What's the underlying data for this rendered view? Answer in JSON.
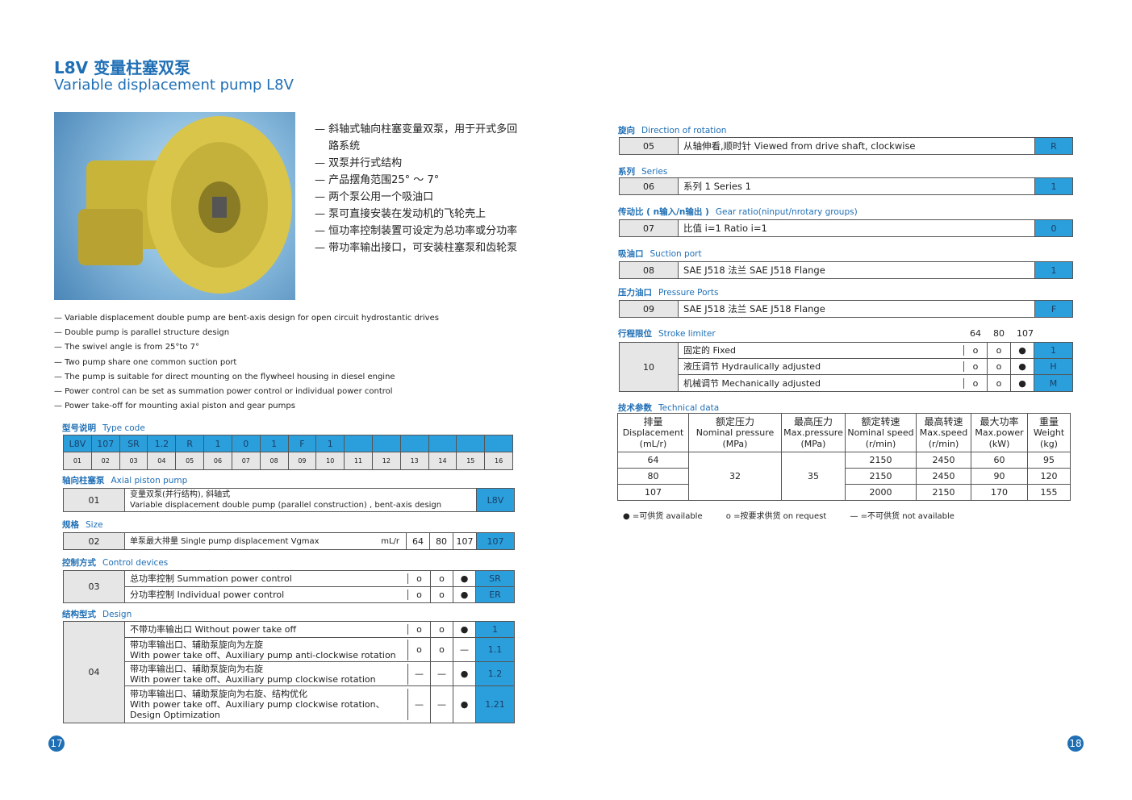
{
  "title_cn": "L8V 变量柱塞双泵",
  "title_en": "Variable displacement pump L8V",
  "bullets_cn": [
    "— 斜轴式轴向柱塞变量双泵，用于开式多回",
    "　 路系统",
    "— 双泵并行式结构",
    "— 产品摆角范围25° ～ 7°",
    "— 两个泵公用一个吸油口",
    "— 泵可直接安装在发动机的飞轮壳上",
    "— 恒功率控制装置可设定为总功率或分功率",
    "— 带功率输出接口，可安装柱塞泵和齿轮泵"
  ],
  "bullets_en": [
    "— Variable displacement double pump are bent-axis design for open circuit hydrostantic drives",
    "— Double pump is parallel structure design",
    "— The swivel angle is from 25°to 7°",
    "— Two pump share one common suction port",
    "— The pump is suitable for direct mounting on the flywheel housing in diesel engine",
    "— Power control can be set as summation power control or individual power control",
    "— Power take-off for mounting axial piston and gear pumps"
  ],
  "type_code": {
    "cn": "型号说明",
    "en": "Type code",
    "codes": [
      "L8V",
      "107",
      "SR",
      "1.2",
      "R",
      "1",
      "0",
      "1",
      "F",
      "1",
      "",
      "",
      "",
      "",
      "",
      ""
    ],
    "positions": [
      "01",
      "02",
      "03",
      "04",
      "05",
      "06",
      "07",
      "08",
      "09",
      "10",
      "11",
      "12",
      "13",
      "14",
      "15",
      "16"
    ]
  },
  "axial": {
    "cn": "轴向柱塞泵",
    "en": "Axial piston pump",
    "code": "01",
    "lines": [
      "变量双泵(并行结构), 斜轴式",
      "Variable displacement double pump (parallel construction) , bent-axis design"
    ],
    "value": "L8V"
  },
  "size": {
    "cn": "规格",
    "en": "Size",
    "code": "02",
    "text": "单泵最大排量 Single pump displacement Vgmax",
    "unit": "mL/r",
    "sizes": [
      "64",
      "80",
      "107"
    ],
    "value": "107"
  },
  "control": {
    "cn": "控制方式",
    "en": "Control devices",
    "code": "03",
    "rows": [
      {
        "lines": [
          "总功率控制 Summation power control"
        ],
        "marks": [
          "o",
          "o",
          "●"
        ],
        "value": "SR"
      },
      {
        "lines": [
          "分功率控制 Individual power control"
        ],
        "marks": [
          "o",
          "o",
          "●"
        ],
        "value": "ER"
      }
    ]
  },
  "design": {
    "cn": "结构型式",
    "en": "Design",
    "code": "04",
    "rows": [
      {
        "lines": [
          "不带功率输出口  Without power take off"
        ],
        "marks": [
          "o",
          "o",
          "●"
        ],
        "value": "1"
      },
      {
        "lines": [
          "带功率输出口、辅助泵旋向为左旋",
          "With power take off、Auxiliary pump anti-clockwise rotation"
        ],
        "marks": [
          "o",
          "o",
          "—"
        ],
        "value": "1.1"
      },
      {
        "lines": [
          "带功率输出口、辅助泵旋向为右旋",
          "With power take off、Auxiliary pump clockwise rotation"
        ],
        "marks": [
          "—",
          "—",
          "●"
        ],
        "value": "1.2"
      },
      {
        "lines": [
          "带功率输出口、辅助泵旋向为右旋、结构优化",
          "With power take off、Auxiliary pump clockwise rotation、Design Optimization"
        ],
        "marks": [
          "—",
          "—",
          "●"
        ],
        "value": "1.21"
      }
    ]
  },
  "rotation": {
    "cn": "旋向",
    "en": "Direction of rotation",
    "code": "05",
    "text": "从轴伸看,顺时针 Viewed from drive shaft, clockwise",
    "value": "R"
  },
  "series": {
    "cn": "系列",
    "en": "Series",
    "code": "06",
    "text": "系列 1   Series 1",
    "value": "1"
  },
  "gear": {
    "cn": "传动比 ( n输入/n输出 )",
    "en": "Gear ratio(ninput/nrotary groups)",
    "code": "07",
    "text": "比值 i=1   Ratio i=1",
    "value": "0"
  },
  "suction": {
    "cn": "吸油口",
    "en": "Suction port",
    "code": "08",
    "text": "SAE  J518 法兰   SAE  J518 Flange",
    "value": "1"
  },
  "pressure": {
    "cn": "压力油口",
    "en": "Pressure Ports",
    "code": "09",
    "text": "SAE  J518 法兰   SAE  J518 Flange",
    "value": "F"
  },
  "stroke": {
    "cn": "行程限位",
    "en": "Stroke limiter",
    "sizes": [
      "64",
      "80",
      "107"
    ],
    "code": "10",
    "rows": [
      {
        "lines": [
          "固定的  Fixed"
        ],
        "marks": [
          "o",
          "o",
          "●"
        ],
        "value": "1"
      },
      {
        "lines": [
          "液压调节  Hydraulically adjusted"
        ],
        "marks": [
          "o",
          "o",
          "●"
        ],
        "value": "H"
      },
      {
        "lines": [
          "机械调节  Mechanically adjusted"
        ],
        "marks": [
          "o",
          "o",
          "●"
        ],
        "value": "M"
      }
    ]
  },
  "tech": {
    "cn": "技术参数",
    "en": "Technical data",
    "headers": [
      [
        "排量",
        "Displacement",
        "(mL/r)"
      ],
      [
        "额定压力",
        "Nominal pressure",
        "(MPa)"
      ],
      [
        "最高压力",
        "Max.pressure",
        "(MPa)"
      ],
      [
        "额定转速",
        "Nominal speed",
        "(r/min)"
      ],
      [
        "最高转速",
        "Max.speed",
        "(r/min)"
      ],
      [
        "最大功率",
        "Max.power",
        "(kW)"
      ],
      [
        "重量",
        "Weight",
        "(kg)"
      ]
    ],
    "rows": [
      [
        "64",
        "32",
        "35",
        "2150",
        "2450",
        "60",
        "95"
      ],
      [
        "80",
        "",
        "",
        "2150",
        "2450",
        "90",
        "120"
      ],
      [
        "107",
        "",
        "",
        "2000",
        "2150",
        "170",
        "155"
      ]
    ]
  },
  "legend": [
    "● =可供货 available",
    "o =按要求供货  on request",
    "— =不可供货 not available"
  ],
  "page_left": "17",
  "page_right": "18",
  "colors": {
    "accent": "#1f6fb5",
    "cell_blue": "#2b9fdc",
    "cell_gray": "#e6e6e6"
  }
}
